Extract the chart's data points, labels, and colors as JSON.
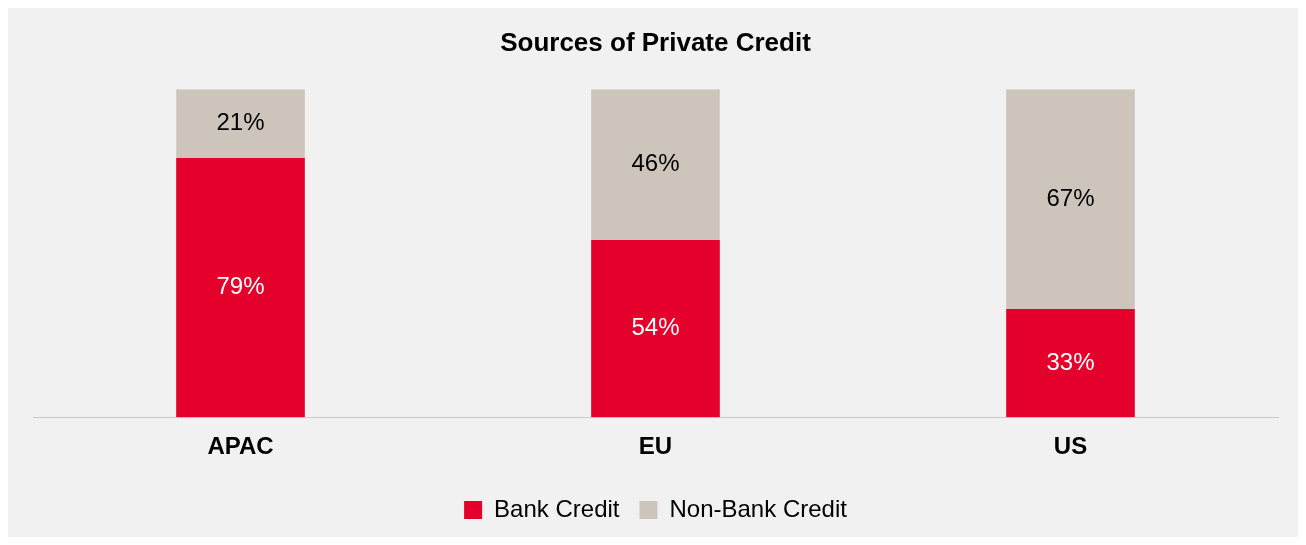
{
  "chart_data": {
    "type": "bar",
    "title": "Sources of Private Credit",
    "categories": [
      "APAC",
      "EU",
      "US"
    ],
    "stacked": true,
    "ylim": [
      0,
      100
    ],
    "tick_labels": "x",
    "grid": false,
    "legend": "bottom",
    "series": [
      {
        "name": "Bank Credit",
        "color": "#e4002b",
        "values": [
          79,
          54,
          33
        ],
        "value_labels": [
          "79%",
          "54%",
          "33%"
        ]
      },
      {
        "name": "Non-Bank Credit",
        "color": "#cdc5bc",
        "values": [
          21,
          46,
          67
        ],
        "value_labels": [
          "21%",
          "46%",
          "67%"
        ]
      }
    ]
  }
}
